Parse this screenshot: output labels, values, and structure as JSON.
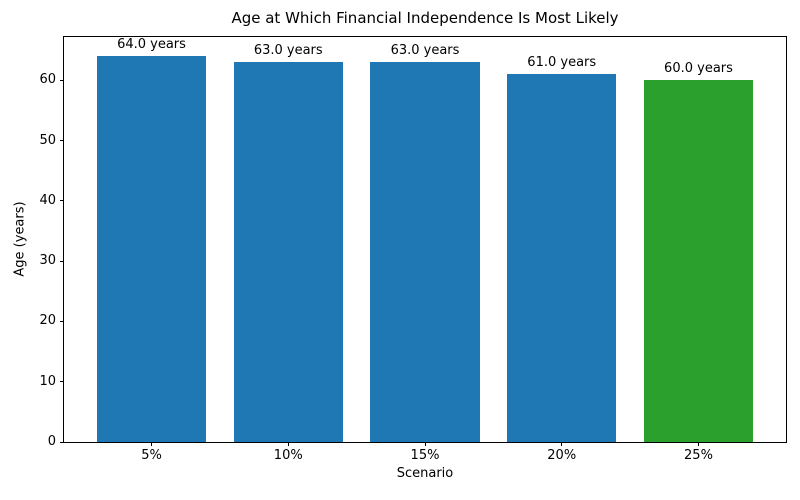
{
  "chart_data": {
    "type": "bar",
    "title": "Age at Which Financial Independence Is Most Likely",
    "xlabel": "Scenario",
    "ylabel": "Age (years)",
    "categories": [
      "5%",
      "10%",
      "15%",
      "20%",
      "25%"
    ],
    "values": [
      64.0,
      63.0,
      63.0,
      61.0,
      60.0
    ],
    "bar_labels": [
      "64.0 years",
      "63.0 years",
      "63.0 years",
      "61.0 years",
      "60.0 years"
    ],
    "bar_colors": [
      "#1f77b4",
      "#1f77b4",
      "#1f77b4",
      "#1f77b4",
      "#2ca02c"
    ],
    "yticks": [
      0,
      10,
      20,
      30,
      40,
      50,
      60
    ],
    "ytick_labels": [
      "0",
      "10",
      "20",
      "30",
      "40",
      "50",
      "60"
    ],
    "ylim": [
      0,
      67.2
    ],
    "xlim": [
      -0.64,
      4.64
    ],
    "bar_width": 0.8,
    "grid": false,
    "legend": null,
    "background_color": "#ffffff",
    "spine_color": "#000000",
    "text_color": "#000000"
  }
}
